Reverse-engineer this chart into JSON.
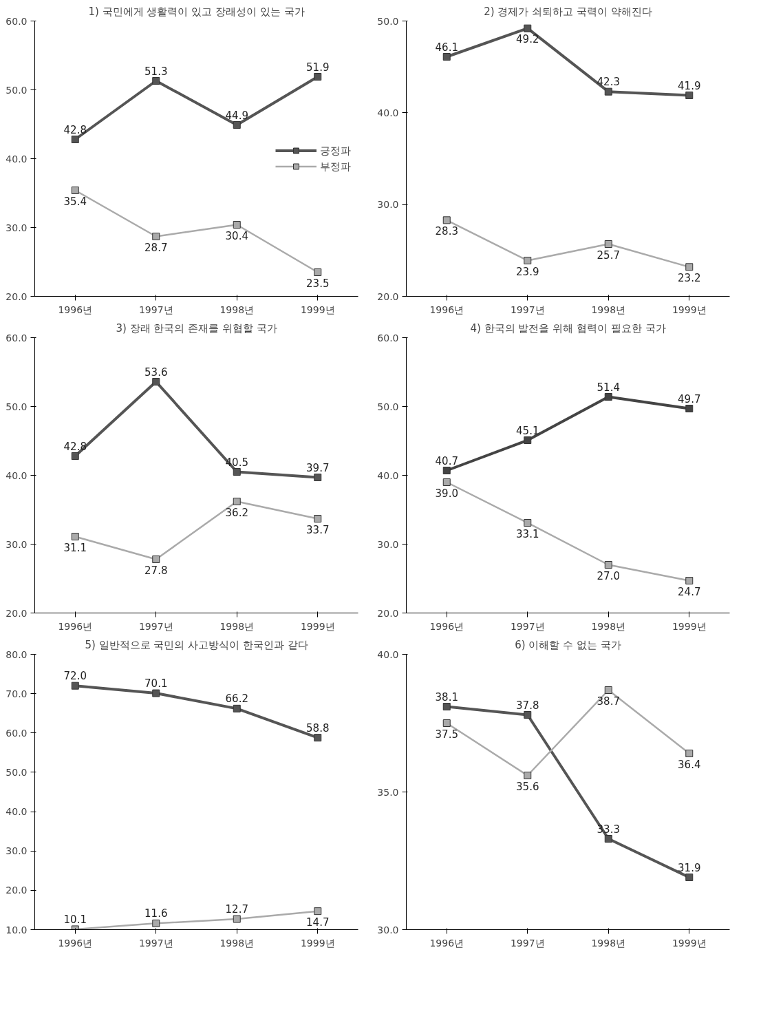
{
  "chart_data": [
    {
      "type": "line",
      "title": "1) 국민에게 생활력이 있고 장래성이 있는 국가",
      "categories": [
        "1996년",
        "1997년",
        "1998년",
        "1999년"
      ],
      "ylim": [
        20,
        60
      ],
      "yticks": [
        {
          "value": 20,
          "label": "20.0"
        },
        {
          "value": 30,
          "label": "30.0"
        },
        {
          "value": 40,
          "label": "40.0"
        },
        {
          "value": 50,
          "label": "50.0"
        },
        {
          "value": 60,
          "label": "60.0"
        }
      ],
      "marker": "square",
      "data_labels": true,
      "grid": false,
      "legend": "right",
      "series": [
        {
          "name": "긍정파",
          "color": "#555555",
          "values": [
            42.8,
            51.3,
            44.9,
            51.9
          ]
        },
        {
          "name": "부정파",
          "color": "#aaaaaa",
          "values": [
            35.4,
            28.7,
            30.4,
            23.5
          ]
        }
      ]
    },
    {
      "type": "line",
      "title": "2) 경제가 쇠퇴하고 국력이 약해진다",
      "categories": [
        "1996년",
        "1997년",
        "1998년",
        "1999년"
      ],
      "ylim": [
        20,
        50
      ],
      "yticks": [
        {
          "value": 20,
          "label": "20.0"
        },
        {
          "value": 30,
          "label": "30.0"
        },
        {
          "value": 40,
          "label": "40.0"
        },
        {
          "value": 50,
          "label": "50.0"
        }
      ],
      "marker": "square",
      "data_labels": true,
      "grid": false,
      "series": [
        {
          "color": "#555555",
          "values": [
            46.1,
            49.2,
            42.3,
            41.9
          ]
        },
        {
          "color": "#aaaaaa",
          "values": [
            28.3,
            23.9,
            25.7,
            23.2
          ]
        }
      ]
    },
    {
      "type": "line",
      "title": "3) 장래 한국의 존재를 위협할 국가",
      "categories": [
        "1996년",
        "1997년",
        "1998년",
        "1999년"
      ],
      "ylim": [
        20,
        60
      ],
      "yticks": [
        {
          "value": 20,
          "label": "20.0"
        },
        {
          "value": 30,
          "label": "30.0"
        },
        {
          "value": 40,
          "label": "40.0"
        },
        {
          "value": 50,
          "label": "50.0"
        },
        {
          "value": 60,
          "label": "60.0"
        }
      ],
      "marker": "square",
      "data_labels": true,
      "grid": false,
      "series": [
        {
          "color": "#555555",
          "values": [
            42.8,
            53.6,
            40.5,
            39.7
          ]
        },
        {
          "color": "#aaaaaa",
          "values": [
            31.1,
            27.8,
            36.2,
            33.7
          ]
        }
      ]
    },
    {
      "type": "line",
      "title": "4) 한국의 발전을 위해 협력이 필요한 국가",
      "categories": [
        "1996년",
        "1997년",
        "1998년",
        "1999년"
      ],
      "ylim": [
        20,
        60
      ],
      "yticks": [
        {
          "value": 20,
          "label": "20.0"
        },
        {
          "value": 30,
          "label": "30.0"
        },
        {
          "value": 40,
          "label": "40.0"
        },
        {
          "value": 50,
          "label": "50.0"
        },
        {
          "value": 60,
          "label": "60.0"
        }
      ],
      "marker": "square",
      "data_labels": true,
      "grid": false,
      "series": [
        {
          "color": "#444444",
          "values": [
            40.7,
            45.1,
            51.4,
            49.7
          ]
        },
        {
          "color": "#aaaaaa",
          "values": [
            39.0,
            33.1,
            27.0,
            24.7
          ],
          "value_labels": [
            "39.0",
            "33.1",
            "27.0",
            "24.7"
          ]
        }
      ]
    },
    {
      "type": "line",
      "title": "5) 일반적으로 국민의 사고방식이 한국인과 같다",
      "categories": [
        "1996년",
        "1997년",
        "1998년",
        "1999년"
      ],
      "ylim": [
        10,
        80
      ],
      "yticks": [
        {
          "value": 10,
          "label": "10.0"
        },
        {
          "value": 20,
          "label": "20.0"
        },
        {
          "value": 30,
          "label": "30.0"
        },
        {
          "value": 40,
          "label": "40.0"
        },
        {
          "value": 50,
          "label": "50.0"
        },
        {
          "value": 60,
          "label": "60.0"
        },
        {
          "value": 70,
          "label": "70.0"
        },
        {
          "value": 80,
          "label": "80.0"
        }
      ],
      "marker": "square",
      "data_labels": true,
      "grid": false,
      "series": [
        {
          "color": "#555555",
          "values": [
            72.0,
            70.1,
            66.2,
            58.8
          ],
          "value_labels": [
            "72.0",
            "70.1",
            "66.2",
            "58.8"
          ]
        },
        {
          "color": "#aaaaaa",
          "values": [
            10.1,
            11.6,
            12.7,
            14.7
          ]
        }
      ]
    },
    {
      "type": "line",
      "title": "6) 이해할 수 없는 국가",
      "categories": [
        "1996년",
        "1997년",
        "1998년",
        "1999년"
      ],
      "ylim": [
        30,
        40
      ],
      "yticks": [
        {
          "value": 30,
          "label": "30.0"
        },
        {
          "value": 35,
          "label": "35.0"
        },
        {
          "value": 40,
          "label": "40.0"
        }
      ],
      "marker": "square",
      "data_labels": true,
      "grid": false,
      "series": [
        {
          "color": "#555555",
          "values": [
            38.1,
            37.8,
            33.3,
            31.9
          ]
        },
        {
          "color": "#aaaaaa",
          "values": [
            37.5,
            35.6,
            38.7,
            36.4
          ]
        }
      ]
    }
  ]
}
